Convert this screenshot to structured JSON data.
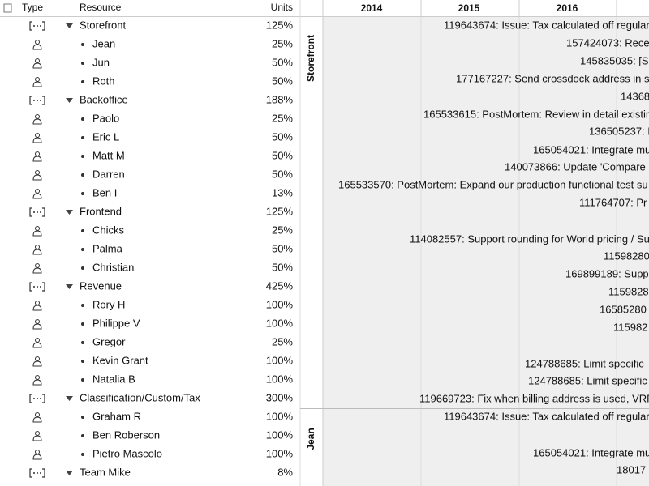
{
  "header": {
    "columns": [
      "Type",
      "Resource",
      "Units"
    ],
    "years": [
      "2014",
      "2015",
      "2016"
    ]
  },
  "resources": [
    {
      "type": "group",
      "name": "Storefront",
      "units": "125%"
    },
    {
      "type": "person",
      "name": "Jean",
      "units": "25%"
    },
    {
      "type": "person",
      "name": "Jun",
      "units": "50%"
    },
    {
      "type": "person",
      "name": "Roth",
      "units": "50%"
    },
    {
      "type": "group",
      "name": "Backoffice",
      "units": "188%"
    },
    {
      "type": "person",
      "name": "Paolo",
      "units": "25%"
    },
    {
      "type": "person",
      "name": "Eric L",
      "units": "50%"
    },
    {
      "type": "person",
      "name": "Matt M",
      "units": "50%"
    },
    {
      "type": "person",
      "name": "Darren",
      "units": "50%"
    },
    {
      "type": "person",
      "name": "Ben I",
      "units": "13%"
    },
    {
      "type": "group",
      "name": "Frontend",
      "units": "125%"
    },
    {
      "type": "person",
      "name": "Chicks",
      "units": "25%"
    },
    {
      "type": "person",
      "name": "Palma",
      "units": "50%"
    },
    {
      "type": "person",
      "name": "Christian",
      "units": "50%"
    },
    {
      "type": "group",
      "name": "Revenue",
      "units": "425%"
    },
    {
      "type": "person",
      "name": "Rory H",
      "units": "100%"
    },
    {
      "type": "person",
      "name": "Philippe V",
      "units": "100%"
    },
    {
      "type": "person",
      "name": "Gregor",
      "units": "25%"
    },
    {
      "type": "person",
      "name": "Kevin Grant",
      "units": "100%"
    },
    {
      "type": "person",
      "name": "Natalia B",
      "units": "100%"
    },
    {
      "type": "group",
      "name": "Classification/Custom/Tax",
      "units": "300%"
    },
    {
      "type": "person",
      "name": "Graham R",
      "units": "100%"
    },
    {
      "type": "person",
      "name": "Ben Roberson",
      "units": "100%"
    },
    {
      "type": "person",
      "name": "Pietro Mascolo",
      "units": "100%"
    },
    {
      "type": "group",
      "name": "Team Mike",
      "units": "8%"
    }
  ],
  "gantt": {
    "sections": [
      {
        "label": "Storefront",
        "tasks": [
          "119643674: Issue: Tax calculated off regular",
          "157424073: Rece",
          "145835035: [S",
          "177167227: Send crossdock address in s",
          "14368",
          "165533615: PostMortem: Review in detail existin",
          "136505237: I",
          "165054021: Integrate mu",
          "140073866: Update 'Compare",
          "165533570: PostMortem: Expand our production functional test su",
          "111764707: Pr",
          "114082557: Support rounding for World pricing / Su",
          "11598280",
          "169899189: Supp",
          "1159828",
          "16585280",
          "115982",
          "124788685: Limit specific",
          "124788685: Limit specific",
          "119669723: Fix when billing address is used, VRF"
        ]
      },
      {
        "label": "Jean",
        "tasks": [
          "119643674: Issue: Tax calculated off regular",
          "165054021: Integrate mu",
          "18017"
        ]
      }
    ]
  }
}
